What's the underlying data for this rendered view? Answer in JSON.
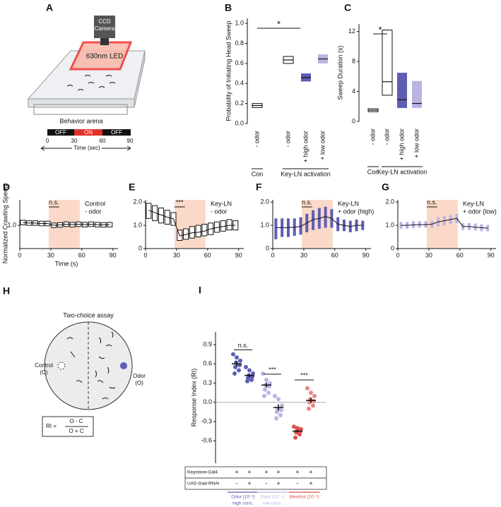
{
  "chart_data": [
    {
      "type": "box",
      "label": "B",
      "ylabel": "Probability of Initiating Head Sweep",
      "categories": [
        "- odor",
        "- odor",
        "+ high odor",
        "+ low odor"
      ],
      "groups": [
        "Con",
        "Key-LN activation"
      ],
      "low": [
        0.16,
        0.6,
        0.42,
        0.6
      ],
      "median": [
        0.18,
        0.635,
        0.46,
        0.645
      ],
      "high": [
        0.2,
        0.67,
        0.5,
        0.69
      ],
      "colors": [
        "#ffffff",
        "#ffffff",
        "#5e5eb5",
        "#b9b4e4"
      ],
      "ylim": [
        0,
        1.05
      ],
      "yticks": [
        {
          "value": 0,
          "label": "0.0"
        },
        0.2,
        0.4,
        0.6,
        0.8,
        {
          "value": 1,
          "label": "1.0"
        }
      ],
      "annotations": [
        "*"
      ]
    },
    {
      "type": "box",
      "label": "C",
      "ylabel": "Sweep Duration (s)",
      "categories": [
        "- odor",
        "- odor",
        "+ high odor",
        "+ low odor"
      ],
      "groups": [
        "Con",
        "Key-LN activation"
      ],
      "low": [
        1.3,
        3.5,
        1.8,
        1.8
      ],
      "median": [
        1.5,
        5.3,
        2.9,
        2.4
      ],
      "high": [
        1.7,
        12.2,
        6.5,
        5.4
      ],
      "colors": [
        "#ffffff",
        "#ffffff",
        "#5e5eb5",
        "#b9b4e4"
      ],
      "ylim": [
        0,
        13
      ],
      "yticks": [
        0,
        4,
        8,
        12
      ],
      "annotations": [
        "*"
      ]
    },
    {
      "type": "line",
      "label": "D",
      "ylabel": "Normalized Crawling Speed",
      "xlabel": "Time (s)",
      "legend": [
        "Control",
        "- odor"
      ],
      "annotations": [
        "n.s."
      ],
      "color": "#ffffff",
      "highlight": [
        28,
        58
      ],
      "x": [
        3,
        9,
        15,
        21,
        27,
        33,
        39,
        45,
        51,
        57,
        63,
        69,
        75,
        81,
        87
      ],
      "values": [
        1.12,
        1.1,
        1.1,
        1.08,
        1.08,
        1.0,
        1.02,
        1.05,
        1.03,
        1.05,
        1.03,
        1.05,
        1.03,
        1.02,
        1.03
      ],
      "low": [
        1.02,
        1.0,
        1.0,
        0.98,
        0.98,
        0.9,
        0.92,
        0.95,
        0.93,
        0.95,
        0.93,
        0.95,
        0.93,
        0.92,
        0.93
      ],
      "high": [
        1.22,
        1.2,
        1.2,
        1.18,
        1.18,
        1.1,
        1.12,
        1.15,
        1.13,
        1.15,
        1.13,
        1.15,
        1.13,
        1.12,
        1.13
      ],
      "xlim": [
        0,
        95
      ],
      "xticks": [
        0,
        30,
        60,
        90
      ],
      "ylim": [
        0,
        2.1
      ],
      "yticks": [
        {
          "value": 1,
          "label": "1.0"
        }
      ]
    },
    {
      "type": "line",
      "label": "E",
      "legend": [
        "Key-LN",
        "- odor"
      ],
      "annotations": [
        "***"
      ],
      "color": "#ffffff",
      "highlight": [
        28,
        58
      ],
      "x": [
        3,
        9,
        15,
        21,
        27,
        33,
        39,
        45,
        51,
        57,
        63,
        69,
        75,
        81,
        87
      ],
      "values": [
        1.65,
        1.55,
        1.45,
        1.35,
        1.28,
        0.55,
        0.6,
        0.68,
        0.7,
        0.75,
        0.85,
        0.9,
        0.95,
        1.0,
        1.0
      ],
      "low": [
        1.3,
        1.2,
        1.1,
        1.05,
        1.0,
        0.35,
        0.4,
        0.45,
        0.5,
        0.55,
        0.6,
        0.7,
        0.75,
        0.8,
        0.8
      ],
      "high": [
        1.95,
        1.85,
        1.75,
        1.65,
        1.55,
        0.8,
        0.85,
        0.95,
        1.0,
        1.05,
        1.1,
        1.15,
        1.2,
        1.25,
        1.2
      ],
      "xlim": [
        0,
        95
      ],
      "xticks": [
        0,
        30,
        60,
        90
      ],
      "ylim": [
        0,
        2.1
      ],
      "yticks": [
        0,
        {
          "value": 1,
          "label": "1.0"
        },
        {
          "value": 2,
          "label": "2.0"
        }
      ]
    },
    {
      "type": "line",
      "label": "F",
      "legend": [
        "Key-LN",
        "+ odor (high)"
      ],
      "annotations": [
        "n.s."
      ],
      "color": "#5e5eb5",
      "highlight": [
        28,
        58
      ],
      "x": [
        3,
        9,
        15,
        21,
        27,
        33,
        39,
        45,
        51,
        57,
        63,
        69,
        75,
        81,
        87
      ],
      "values": [
        0.9,
        0.9,
        0.9,
        0.92,
        0.95,
        1.1,
        1.25,
        1.3,
        1.38,
        1.3,
        1.05,
        1.0,
        0.95,
        1.0,
        1.0
      ],
      "low": [
        0.4,
        0.5,
        0.5,
        0.55,
        0.6,
        0.7,
        0.8,
        0.85,
        0.9,
        0.9,
        0.75,
        0.75,
        0.7,
        0.75,
        0.8
      ],
      "high": [
        1.3,
        1.3,
        1.3,
        1.3,
        1.35,
        1.5,
        1.65,
        1.75,
        1.8,
        1.7,
        1.35,
        1.25,
        1.2,
        1.25,
        1.2
      ],
      "xlim": [
        0,
        95
      ],
      "xticks": [
        0,
        30,
        60,
        90
      ],
      "ylim": [
        0,
        2.1
      ],
      "yticks": [
        0,
        {
          "value": 1,
          "label": "1.0"
        },
        {
          "value": 2,
          "label": "2.0"
        }
      ]
    },
    {
      "type": "line",
      "label": "G",
      "legend": [
        "Key-LN",
        "+ odor (low)"
      ],
      "annotations": [
        "n.s."
      ],
      "color": "#b9b4e4",
      "highlight": [
        28,
        58
      ],
      "x": [
        3,
        9,
        15,
        21,
        27,
        33,
        39,
        45,
        51,
        57,
        63,
        69,
        75,
        81,
        87
      ],
      "values": [
        1.0,
        1.0,
        1.02,
        1.03,
        1.03,
        1.05,
        1.15,
        1.2,
        1.25,
        1.3,
        0.95,
        0.95,
        0.92,
        0.9,
        0.88
      ],
      "low": [
        0.85,
        0.85,
        0.88,
        0.9,
        0.9,
        0.9,
        0.95,
        1.0,
        1.05,
        1.1,
        0.8,
        0.8,
        0.78,
        0.75,
        0.75
      ],
      "high": [
        1.15,
        1.15,
        1.18,
        1.18,
        1.18,
        1.2,
        1.35,
        1.4,
        1.45,
        1.5,
        1.1,
        1.1,
        1.08,
        1.05,
        1.02
      ],
      "xlim": [
        0,
        95
      ],
      "xticks": [
        0,
        30,
        60,
        90
      ],
      "ylim": [
        0,
        2.1
      ],
      "yticks": [
        0,
        {
          "value": 1,
          "label": "1.0"
        },
        {
          "value": 2,
          "label": "2.0"
        }
      ]
    },
    {
      "type": "strip",
      "label": "I",
      "ylabel": "Response Index (RI)",
      "annotations": [
        "n.s.",
        "***",
        "***"
      ],
      "colors": [
        "#5e5eb5",
        "#5e5eb5",
        "#b9b4e4",
        "#b9b4e4",
        "#d9534f",
        "#e8877f"
      ],
      "means": [
        0.6,
        0.42,
        0.27,
        -0.08,
        -0.45,
        0.03
      ],
      "sem": [
        0.04,
        0.03,
        0.04,
        0.05,
        0.02,
        0.04
      ],
      "points": [
        [
          0.75,
          0.7,
          0.65,
          0.62,
          0.58,
          0.55,
          0.5,
          0.45
        ],
        [
          0.55,
          0.5,
          0.45,
          0.42,
          0.4,
          0.38,
          0.35,
          0.33
        ],
        [
          0.45,
          0.35,
          0.3,
          0.27,
          0.25,
          0.2,
          0.15,
          0.1
        ],
        [
          0.1,
          0.05,
          -0.05,
          -0.1,
          -0.12,
          -0.15,
          -0.2,
          -0.25
        ],
        [
          -0.38,
          -0.4,
          -0.42,
          -0.44,
          -0.45,
          -0.47,
          -0.5,
          -0.55
        ],
        [
          0.22,
          0.15,
          0.1,
          0.05,
          0.02,
          0.0,
          -0.05,
          -0.1
        ]
      ],
      "ylim": [
        -0.95,
        1.1
      ],
      "yticks": [
        0.9,
        0.6,
        0.3,
        {
          "value": 0,
          "label": "0.0"
        },
        -0.3,
        -0.6
      ],
      "table": [
        {
          "name": "Keystone-Gal4",
          "cells": [
            "+",
            "+",
            "+",
            "+",
            "+",
            "+"
          ]
        },
        {
          "name": "UAS-Gad-RNAi",
          "cells": [
            "-",
            "+",
            "-",
            "+",
            "-",
            "+"
          ]
        }
      ],
      "group_labels": [
        [
          "Odor (10⁻²)",
          "high conc."
        ],
        [
          "Odor (10⁻⁴)",
          "low conc."
        ],
        [
          "Menthol (10⁻²)"
        ]
      ]
    }
  ],
  "diagrams": {
    "A": {
      "label": "A",
      "camera": [
        "CCD",
        "Camera"
      ],
      "led": "630nm LED",
      "arena": "Behavior arena",
      "timeline": [
        "OFF",
        "ON",
        "OFF"
      ],
      "time_ticks": [
        "0",
        "30",
        "60",
        "90"
      ],
      "time_label": "Time (sec)"
    },
    "H": {
      "label": "H",
      "title": "Two-choice assay",
      "control": [
        "Control",
        "(C)"
      ],
      "odor": [
        "Odor",
        "(O)"
      ],
      "lhs": "RI =",
      "numerator": "O - C",
      "denominator": "O + C"
    }
  }
}
